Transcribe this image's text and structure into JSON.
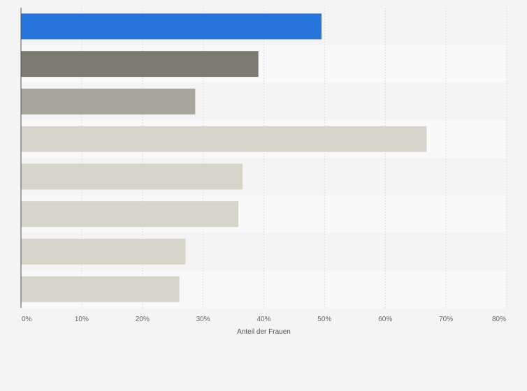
{
  "chart_data": {
    "type": "bar",
    "orientation": "horizontal",
    "title": "",
    "categories": [
      "",
      "",
      "",
      "",
      "",
      "",
      "",
      ""
    ],
    "values": [
      49.5,
      39.1,
      28.7,
      66.8,
      36.5,
      35.8,
      27.1,
      26.1
    ],
    "bar_colors": [
      "#2474dc",
      "#7c7b70",
      "#a8a69a",
      "#d7d5ca",
      "#d7d5ca",
      "#d7d5ca",
      "#d7d5ca",
      "#d7d5ca"
    ],
    "xlabel": "Anteil der Frauen",
    "ylabel": "",
    "xlim": [
      0,
      80
    ],
    "x_ticks": [
      0,
      10,
      20,
      30,
      40,
      50,
      60,
      70,
      80
    ],
    "x_tick_labels": [
      "0%",
      "10%",
      "20%",
      "30%",
      "40%",
      "50%",
      "60%",
      "70%",
      "80%"
    ],
    "grid": true,
    "legend": "none"
  }
}
